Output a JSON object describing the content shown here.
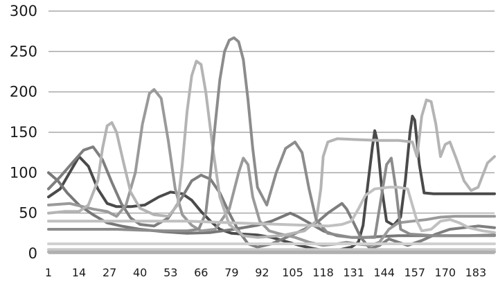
{
  "chart_data": {
    "type": "line",
    "title": "",
    "xlabel": "",
    "ylabel": "",
    "ylim": [
      0,
      300
    ],
    "xlim": [
      1,
      191
    ],
    "grid": true,
    "legend": "none",
    "y_ticks": [
      "0",
      "50",
      "100",
      "150",
      "200",
      "250",
      "300"
    ],
    "x_ticks": [
      "1",
      "14",
      "27",
      "40",
      "53",
      "66",
      "79",
      "92",
      "105",
      "118",
      "131",
      "144",
      "157",
      "170",
      "183"
    ],
    "series": [
      {
        "color": "#4a4a4a",
        "points": [
          [
            1,
            70
          ],
          [
            6,
            80
          ],
          [
            10,
            100
          ],
          [
            14,
            120
          ],
          [
            18,
            108
          ],
          [
            22,
            80
          ],
          [
            26,
            62
          ],
          [
            30,
            58
          ],
          [
            36,
            58
          ],
          [
            42,
            60
          ],
          [
            48,
            70
          ],
          [
            53,
            76
          ],
          [
            58,
            74
          ],
          [
            62,
            66
          ],
          [
            66,
            52
          ],
          [
            70,
            40
          ],
          [
            74,
            30
          ],
          [
            79,
            25
          ],
          [
            84,
            24
          ],
          [
            90,
            23
          ],
          [
            96,
            20
          ],
          [
            102,
            15
          ],
          [
            108,
            10
          ],
          [
            114,
            6
          ],
          [
            118,
            4
          ],
          [
            124,
            4
          ],
          [
            130,
            8
          ],
          [
            133,
            14
          ],
          [
            135,
            35
          ],
          [
            137,
            85
          ],
          [
            139,
            132
          ],
          [
            140,
            152
          ],
          [
            141,
            140
          ],
          [
            143,
            80
          ],
          [
            145,
            40
          ],
          [
            148,
            35
          ],
          [
            151,
            45
          ],
          [
            153,
            90
          ],
          [
            155,
            150
          ],
          [
            156,
            170
          ],
          [
            157,
            165
          ],
          [
            159,
            110
          ],
          [
            161,
            75
          ],
          [
            165,
            74
          ],
          [
            191,
            74
          ]
        ]
      },
      {
        "color": "#777777",
        "points": [
          [
            1,
            100
          ],
          [
            5,
            90
          ],
          [
            9,
            75
          ],
          [
            14,
            60
          ],
          [
            20,
            48
          ],
          [
            26,
            38
          ],
          [
            32,
            34
          ],
          [
            40,
            30
          ],
          [
            50,
            27
          ],
          [
            60,
            25
          ],
          [
            70,
            26
          ],
          [
            80,
            30
          ],
          [
            90,
            35
          ],
          [
            96,
            40
          ],
          [
            100,
            45
          ],
          [
            104,
            50
          ],
          [
            107,
            46
          ],
          [
            112,
            38
          ],
          [
            118,
            28
          ],
          [
            124,
            22
          ],
          [
            130,
            20
          ],
          [
            136,
            20
          ],
          [
            142,
            21
          ],
          [
            150,
            22
          ],
          [
            160,
            22
          ],
          [
            170,
            22
          ],
          [
            180,
            22
          ],
          [
            191,
            23
          ]
        ]
      },
      {
        "color": "#7e7e7e",
        "points": [
          [
            1,
            80
          ],
          [
            6,
            95
          ],
          [
            12,
            115
          ],
          [
            16,
            128
          ],
          [
            20,
            132
          ],
          [
            24,
            116
          ],
          [
            28,
            88
          ],
          [
            32,
            62
          ],
          [
            36,
            44
          ],
          [
            40,
            36
          ],
          [
            46,
            34
          ],
          [
            52,
            44
          ],
          [
            58,
            70
          ],
          [
            62,
            90
          ],
          [
            66,
            97
          ],
          [
            70,
            92
          ],
          [
            74,
            75
          ],
          [
            78,
            50
          ],
          [
            82,
            28
          ],
          [
            86,
            12
          ],
          [
            90,
            8
          ],
          [
            96,
            12
          ],
          [
            104,
            22
          ],
          [
            110,
            30
          ],
          [
            116,
            40
          ],
          [
            120,
            50
          ],
          [
            124,
            58
          ],
          [
            126,
            62
          ],
          [
            128,
            55
          ],
          [
            131,
            38
          ],
          [
            134,
            20
          ],
          [
            138,
            6
          ],
          [
            142,
            10
          ],
          [
            146,
            18
          ],
          [
            150,
            14
          ],
          [
            154,
            10
          ],
          [
            160,
            16
          ],
          [
            166,
            24
          ],
          [
            172,
            30
          ],
          [
            178,
            32
          ],
          [
            184,
            34
          ],
          [
            191,
            32
          ]
        ]
      },
      {
        "color": "#9a9a9a",
        "points": [
          [
            1,
            60
          ],
          [
            10,
            62
          ],
          [
            20,
            55
          ],
          [
            26,
            52
          ],
          [
            30,
            46
          ],
          [
            34,
            60
          ],
          [
            38,
            100
          ],
          [
            41,
            160
          ],
          [
            44,
            198
          ],
          [
            46,
            203
          ],
          [
            49,
            192
          ],
          [
            52,
            140
          ],
          [
            55,
            80
          ],
          [
            58,
            48
          ],
          [
            62,
            35
          ],
          [
            66,
            28
          ],
          [
            72,
            30
          ],
          [
            78,
            55
          ],
          [
            82,
            100
          ],
          [
            84,
            118
          ],
          [
            86,
            110
          ],
          [
            88,
            70
          ],
          [
            91,
            40
          ],
          [
            95,
            28
          ],
          [
            100,
            24
          ],
          [
            106,
            20
          ],
          [
            112,
            14
          ],
          [
            118,
            10
          ],
          [
            124,
            12
          ],
          [
            128,
            14
          ],
          [
            132,
            12
          ],
          [
            138,
            10
          ],
          [
            142,
            14
          ],
          [
            146,
            30
          ],
          [
            150,
            38
          ],
          [
            156,
            40
          ],
          [
            162,
            42
          ],
          [
            168,
            45
          ],
          [
            174,
            46
          ],
          [
            180,
            46
          ],
          [
            191,
            46
          ]
        ]
      },
      {
        "color": "#b4b4b4",
        "points": [
          [
            1,
            50
          ],
          [
            8,
            52
          ],
          [
            14,
            52
          ],
          [
            18,
            60
          ],
          [
            22,
            90
          ],
          [
            24,
            130
          ],
          [
            26,
            158
          ],
          [
            28,
            162
          ],
          [
            30,
            150
          ],
          [
            33,
            112
          ],
          [
            36,
            76
          ],
          [
            40,
            56
          ],
          [
            46,
            48
          ],
          [
            52,
            46
          ],
          [
            56,
            60
          ],
          [
            58,
            110
          ],
          [
            60,
            175
          ],
          [
            62,
            220
          ],
          [
            64,
            238
          ],
          [
            66,
            234
          ],
          [
            68,
            200
          ],
          [
            71,
            130
          ],
          [
            74,
            70
          ],
          [
            78,
            36
          ],
          [
            84,
            22
          ],
          [
            90,
            20
          ],
          [
            100,
            22
          ],
          [
            110,
            28
          ],
          [
            115,
            40
          ],
          [
            117,
            80
          ],
          [
            118,
            120
          ],
          [
            120,
            138
          ],
          [
            124,
            142
          ],
          [
            132,
            141
          ],
          [
            142,
            140
          ],
          [
            150,
            140
          ],
          [
            156,
            138
          ],
          [
            158,
            120
          ],
          [
            160,
            170
          ],
          [
            162,
            190
          ],
          [
            164,
            188
          ],
          [
            166,
            160
          ],
          [
            168,
            120
          ],
          [
            170,
            135
          ],
          [
            172,
            138
          ],
          [
            175,
            115
          ],
          [
            178,
            90
          ],
          [
            181,
            78
          ],
          [
            184,
            82
          ],
          [
            188,
            112
          ],
          [
            191,
            120
          ]
        ]
      },
      {
        "color": "#8c8c8c",
        "points": [
          [
            1,
            30
          ],
          [
            10,
            30
          ],
          [
            20,
            30
          ],
          [
            30,
            30
          ],
          [
            40,
            29
          ],
          [
            50,
            28
          ],
          [
            60,
            28
          ],
          [
            65,
            30
          ],
          [
            68,
            50
          ],
          [
            70,
            100
          ],
          [
            72,
            160
          ],
          [
            74,
            215
          ],
          [
            76,
            250
          ],
          [
            78,
            264
          ],
          [
            80,
            267
          ],
          [
            82,
            262
          ],
          [
            84,
            240
          ],
          [
            86,
            190
          ],
          [
            88,
            130
          ],
          [
            90,
            82
          ],
          [
            94,
            60
          ],
          [
            98,
            100
          ],
          [
            102,
            130
          ],
          [
            106,
            138
          ],
          [
            109,
            125
          ],
          [
            112,
            80
          ],
          [
            115,
            42
          ],
          [
            120,
            25
          ],
          [
            130,
            20
          ],
          [
            140,
            20
          ],
          [
            145,
            110
          ],
          [
            147,
            118
          ],
          [
            149,
            80
          ],
          [
            151,
            30
          ],
          [
            155,
            24
          ],
          [
            165,
            22
          ],
          [
            175,
            22
          ],
          [
            191,
            22
          ]
        ]
      },
      {
        "color": "#c0c0c0",
        "points": [
          [
            1,
            40
          ],
          [
            20,
            40
          ],
          [
            40,
            40
          ],
          [
            60,
            40
          ],
          [
            80,
            38
          ],
          [
            100,
            36
          ],
          [
            120,
            34
          ],
          [
            126,
            36
          ],
          [
            130,
            40
          ],
          [
            133,
            55
          ],
          [
            136,
            72
          ],
          [
            140,
            80
          ],
          [
            146,
            82
          ],
          [
            150,
            82
          ],
          [
            154,
            80
          ],
          [
            158,
            40
          ],
          [
            160,
            28
          ],
          [
            164,
            30
          ],
          [
            168,
            40
          ],
          [
            172,
            42
          ],
          [
            176,
            38
          ],
          [
            180,
            32
          ],
          [
            186,
            28
          ],
          [
            191,
            26
          ]
        ]
      },
      {
        "color": "#d0d0d0",
        "points": [
          [
            1,
            12
          ],
          [
            191,
            12
          ]
        ]
      },
      {
        "color": "#c8c8c8",
        "points": [
          [
            1,
            5
          ],
          [
            191,
            5
          ]
        ]
      },
      {
        "color": "#b0b0b0",
        "points": [
          [
            1,
            2
          ],
          [
            191,
            2
          ]
        ]
      }
    ]
  }
}
